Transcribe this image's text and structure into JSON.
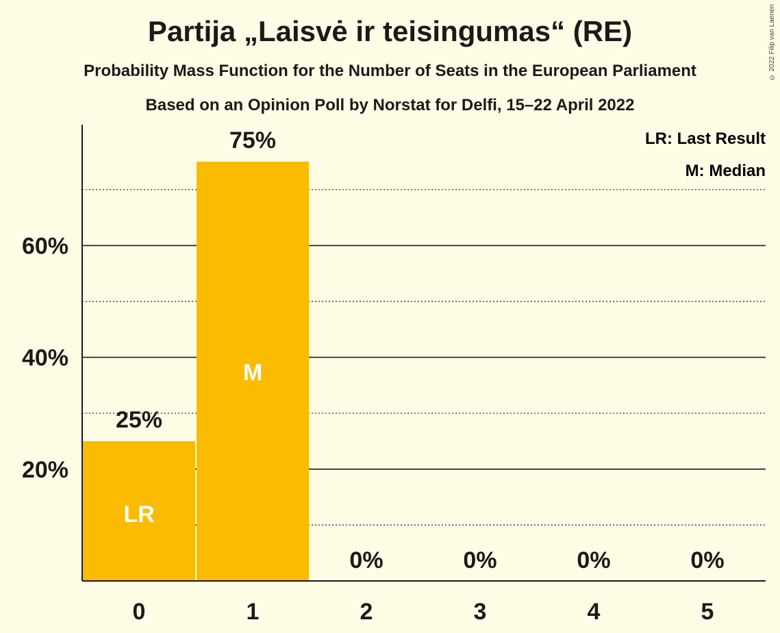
{
  "title": "Partija „Laisvė ir teisingumas“ (RE)",
  "subtitle_1": "Probability Mass Function for the Number of Seats in the European Parliament",
  "subtitle_2": "Based on an Opinion Poll by Norstat for Delfi, 15–22 April 2022",
  "copyright": "© 2022 Filip van Laenen",
  "legend": {
    "last_result": "LR: Last Result",
    "median": "M: Median"
  },
  "colors": {
    "background": "#FFFCE6",
    "bar": "#FABB00",
    "text": "#1a1a1a"
  },
  "chart_data": {
    "type": "bar",
    "categories": [
      "0",
      "1",
      "2",
      "3",
      "4",
      "5"
    ],
    "values": [
      25,
      75,
      0,
      0,
      0,
      0
    ],
    "value_labels": [
      "25%",
      "75%",
      "0%",
      "0%",
      "0%",
      "0%"
    ],
    "bar_markers": [
      "LR",
      "M",
      "",
      "",
      "",
      ""
    ],
    "ylim": [
      0,
      82
    ],
    "y_ticks": [
      20,
      40,
      60
    ],
    "y_tick_labels": [
      "20%",
      "40%",
      "60%"
    ],
    "y_minor_gridlines": [
      10,
      30,
      50,
      70
    ],
    "grid": true,
    "legend_position": "top-right"
  }
}
